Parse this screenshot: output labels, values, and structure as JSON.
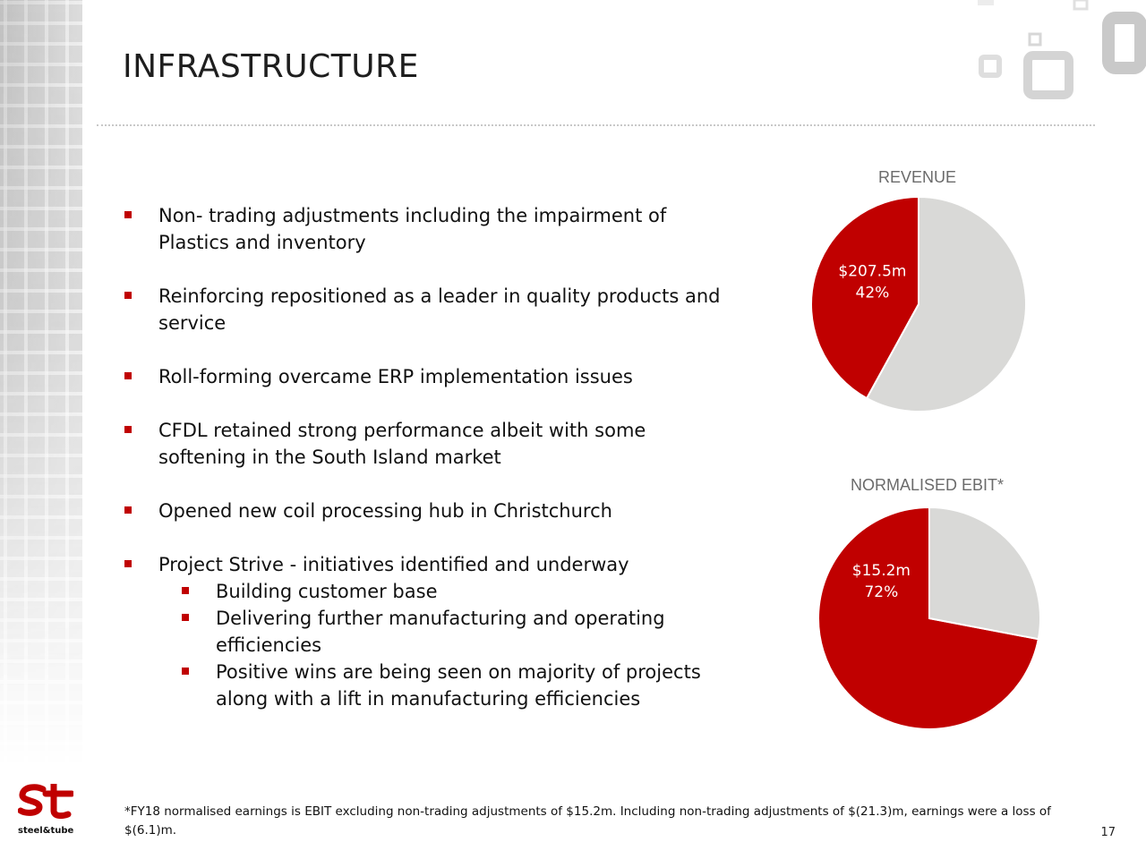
{
  "title": "INFRASTRUCTURE",
  "bullets": [
    {
      "lines": [
        "Non- trading adjustments including the impairment of",
        "Plastics and inventory"
      ]
    },
    {
      "lines": [
        "Reinforcing repositioned as a leader in quality products and",
        "service"
      ]
    },
    {
      "lines": [
        "Roll-forming overcame ERP implementation issues"
      ]
    },
    {
      "lines": [
        "CFDL retained strong performance albeit with some",
        "softening in the South Island market"
      ]
    },
    {
      "lines": [
        "Opened new coil processing hub in Christchurch"
      ]
    },
    {
      "lines": [
        "Project Strive - initiatives identified and underway"
      ]
    }
  ],
  "sub_bullets": [
    {
      "lines": [
        "Building customer base"
      ]
    },
    {
      "lines": [
        "Delivering further manufacturing and operating",
        "efficiencies"
      ]
    },
    {
      "lines": [
        "Positive wins are being seen on majority of projects",
        "along with a lift in manufacturing efficiencies"
      ]
    }
  ],
  "chart_data": [
    {
      "type": "pie",
      "title": "REVENUE",
      "slices": [
        {
          "value": 42,
          "color": "#c00000",
          "label": "$207.5m",
          "pct_label": "42%"
        },
        {
          "value": 58,
          "color": "#d9d9d7"
        }
      ]
    },
    {
      "type": "pie",
      "title": "NORMALISED EBIT*",
      "slices": [
        {
          "value": 72,
          "color": "#c00000",
          "label": "$15.2m",
          "pct_label": "72%"
        },
        {
          "value": 28,
          "color": "#d9d9d7"
        }
      ]
    }
  ],
  "footnote": "*FY18 normalised earnings is EBIT excluding non-trading adjustments of $15.2m.  Including non-trading adjustments of $(21.3)m, earnings were a loss of $(6.1)m.",
  "page_number": "17",
  "logo": {
    "mark": "st",
    "wordmark": "steel&tube",
    "color": "#c00000"
  }
}
